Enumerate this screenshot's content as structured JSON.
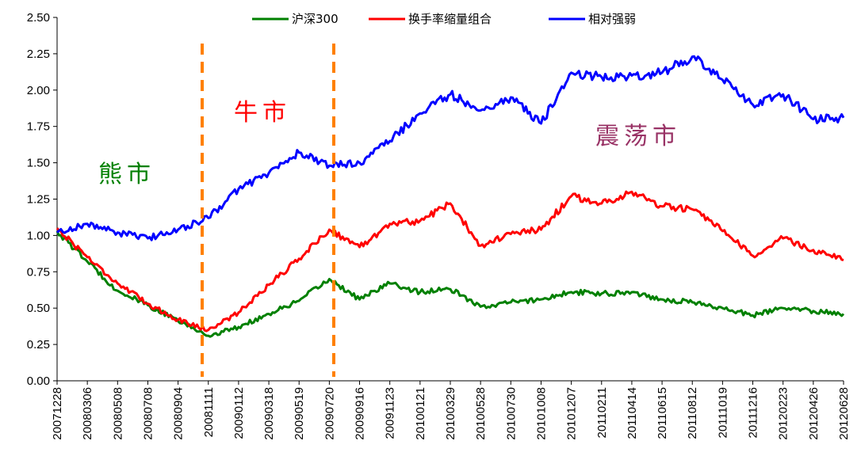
{
  "chart_data": {
    "type": "line",
    "ylim": [
      0,
      2.5
    ],
    "yticks": [
      "0.00",
      "0.25",
      "0.50",
      "0.75",
      "1.00",
      "1.25",
      "1.50",
      "1.75",
      "2.00",
      "2.25",
      "2.50"
    ],
    "x": [
      "20071228",
      "20080306",
      "20080508",
      "20080708",
      "20080904",
      "20081111",
      "20090112",
      "20090318",
      "20090519",
      "20090720",
      "20090916",
      "20091123",
      "20100121",
      "20100329",
      "20100528",
      "20100730",
      "20101008",
      "20101207",
      "20110211",
      "20110414",
      "20110615",
      "20110812",
      "20111019",
      "20111216",
      "20120223",
      "20120426",
      "20120628"
    ],
    "series": [
      {
        "name": "沪深300",
        "color": "#008000",
        "values": [
          1.03,
          0.82,
          0.62,
          0.52,
          0.41,
          0.31,
          0.37,
          0.46,
          0.55,
          0.7,
          0.56,
          0.67,
          0.61,
          0.63,
          0.51,
          0.54,
          0.56,
          0.61,
          0.6,
          0.61,
          0.56,
          0.54,
          0.5,
          0.45,
          0.5,
          0.48,
          0.46
        ]
      },
      {
        "name": "换手率缩量组合",
        "color": "#ff0000",
        "values": [
          1.05,
          0.85,
          0.67,
          0.53,
          0.42,
          0.35,
          0.47,
          0.66,
          0.84,
          1.04,
          0.92,
          1.08,
          1.1,
          1.22,
          0.93,
          1.01,
          1.04,
          1.27,
          1.22,
          1.3,
          1.2,
          1.18,
          1.03,
          0.86,
          0.98,
          0.9,
          0.83
        ]
      },
      {
        "name": "相对强弱",
        "color": "#0000ff",
        "values": [
          1.02,
          1.08,
          1.02,
          0.98,
          1.04,
          1.12,
          1.32,
          1.43,
          1.57,
          1.48,
          1.5,
          1.65,
          1.84,
          1.97,
          1.86,
          1.95,
          1.77,
          2.12,
          2.09,
          2.1,
          2.12,
          2.23,
          2.07,
          1.9,
          1.97,
          1.8,
          1.81
        ]
      }
    ],
    "regime_dividers": [
      "20081111",
      "20090720"
    ],
    "regime_labels": [
      {
        "text": "熊市",
        "color": "#008000"
      },
      {
        "text": "牛市",
        "color": "#ff0000"
      },
      {
        "text": "震荡市",
        "color": "#993366"
      }
    ],
    "divider_color": "#ff8000",
    "legend_position": "top-center",
    "grid": false
  }
}
